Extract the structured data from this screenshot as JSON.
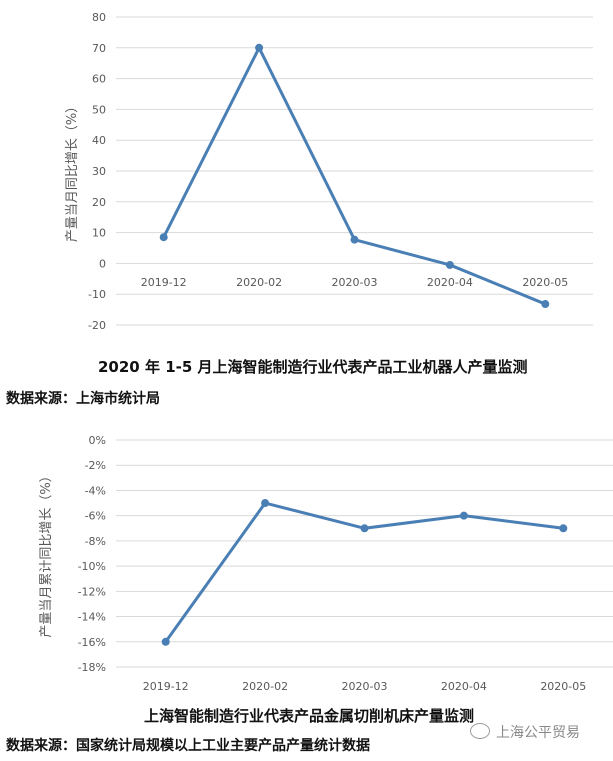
{
  "chart_data": [
    {
      "type": "line",
      "title": "2020 年 1-5 月上海智能制造行业代表产品工业机器人产量监测",
      "source": "数据来源：上海市统计局",
      "ylabel": "产量当月同比增长（%）",
      "categories": [
        "2019-12",
        "2020-02",
        "2020-03",
        "2020-04",
        "2020-05"
      ],
      "values": [
        8.5,
        70,
        7.7,
        -0.5,
        -13.2
      ],
      "ylim": [
        -20,
        80
      ],
      "yticks": [
        "80",
        "70",
        "60",
        "50",
        "40",
        "30",
        "20",
        "10",
        "0",
        "-10",
        "-20"
      ],
      "ytick_values": [
        80,
        70,
        60,
        50,
        40,
        30,
        20,
        10,
        0,
        -10,
        -20
      ],
      "grid": true,
      "color": "#4a7fb5"
    },
    {
      "type": "line",
      "title": "上海智能制造行业代表产品金属切削机床产量监测",
      "source": "数据来源：国家统计局规模以上工业主要产品产量统计数据",
      "ylabel": "产量当月累计同比增长（%）",
      "categories": [
        "2019-12",
        "2020-02",
        "2020-03",
        "2020-04",
        "2020-05"
      ],
      "values": [
        -16,
        -5,
        -7,
        -6,
        -7
      ],
      "ylim": [
        -18,
        0
      ],
      "yticks": [
        "0%",
        "-2%",
        "-4%",
        "-6%",
        "-8%",
        "-10%",
        "-12%",
        "-14%",
        "-16%",
        "-18%"
      ],
      "ytick_values": [
        0,
        -2,
        -4,
        -6,
        -8,
        -10,
        -12,
        -14,
        -16,
        -18
      ],
      "grid": true,
      "color": "#4a7fb5"
    }
  ],
  "watermark": "上海公平贸易"
}
